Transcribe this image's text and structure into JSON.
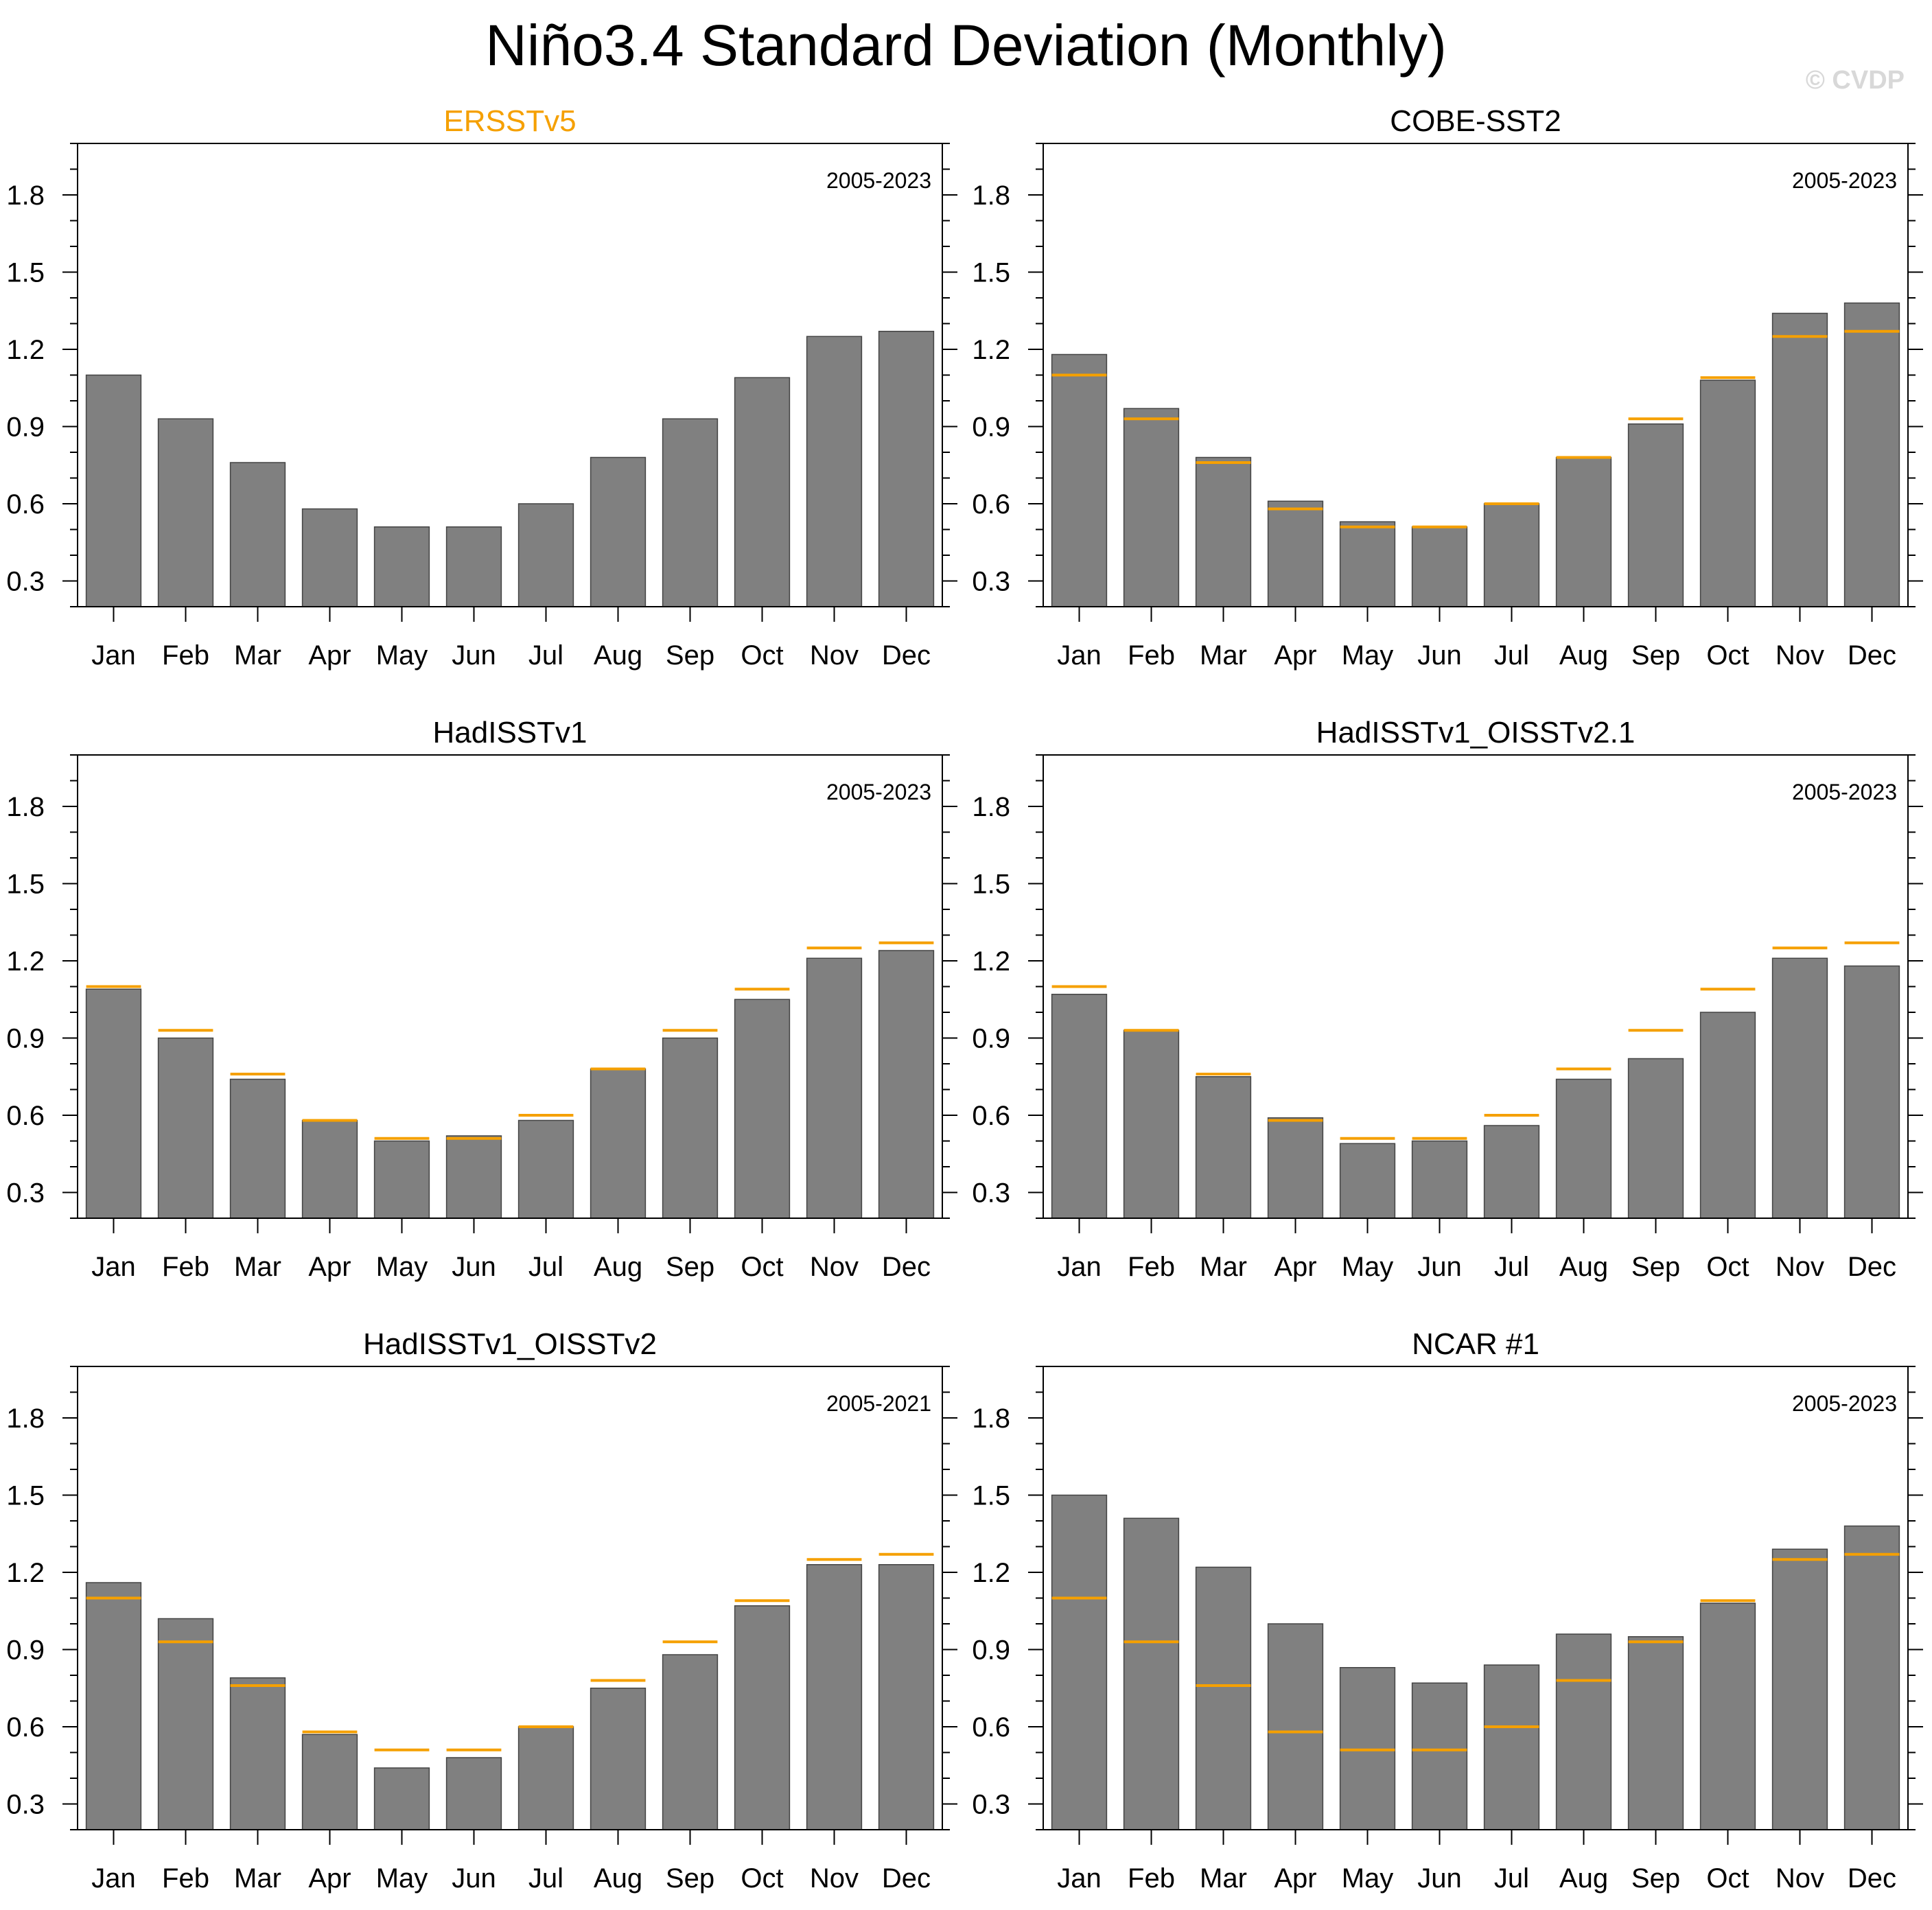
{
  "title": "Niño3.4 Standard Deviation (Monthly)",
  "watermark": "© CVDP",
  "colors": {
    "bar": "#808080",
    "reference": "#f5a000",
    "highlight_title": "#f5a000"
  },
  "chart_data": [
    {
      "type": "bar",
      "title": "ERSSTv5",
      "title_highlight": true,
      "period": "2005-2023",
      "categories": [
        "Jan",
        "Feb",
        "Mar",
        "Apr",
        "May",
        "Jun",
        "Jul",
        "Aug",
        "Sep",
        "Oct",
        "Nov",
        "Dec"
      ],
      "values": [
        1.1,
        0.93,
        0.76,
        0.58,
        0.51,
        0.51,
        0.6,
        0.78,
        0.93,
        1.09,
        1.25,
        1.27
      ],
      "reference": null,
      "ylim": [
        0.2,
        2.0
      ],
      "yticks": [
        "0.3",
        "0.6",
        "0.9",
        "1.2",
        "1.5",
        "1.8"
      ]
    },
    {
      "type": "bar",
      "title": "COBE-SST2",
      "title_highlight": false,
      "period": "2005-2023",
      "categories": [
        "Jan",
        "Feb",
        "Mar",
        "Apr",
        "May",
        "Jun",
        "Jul",
        "Aug",
        "Sep",
        "Oct",
        "Nov",
        "Dec"
      ],
      "values": [
        1.18,
        0.97,
        0.78,
        0.61,
        0.53,
        0.51,
        0.6,
        0.78,
        0.91,
        1.08,
        1.34,
        1.38
      ],
      "reference": [
        1.1,
        0.93,
        0.76,
        0.58,
        0.51,
        0.51,
        0.6,
        0.78,
        0.93,
        1.09,
        1.25,
        1.27
      ],
      "ylim": [
        0.2,
        2.0
      ],
      "yticks": [
        "0.3",
        "0.6",
        "0.9",
        "1.2",
        "1.5",
        "1.8"
      ]
    },
    {
      "type": "bar",
      "title": "HadISSTv1",
      "title_highlight": false,
      "period": "2005-2023",
      "categories": [
        "Jan",
        "Feb",
        "Mar",
        "Apr",
        "May",
        "Jun",
        "Jul",
        "Aug",
        "Sep",
        "Oct",
        "Nov",
        "Dec"
      ],
      "values": [
        1.09,
        0.9,
        0.74,
        0.58,
        0.5,
        0.52,
        0.58,
        0.78,
        0.9,
        1.05,
        1.21,
        1.24
      ],
      "reference": [
        1.1,
        0.93,
        0.76,
        0.58,
        0.51,
        0.51,
        0.6,
        0.78,
        0.93,
        1.09,
        1.25,
        1.27
      ],
      "ylim": [
        0.2,
        2.0
      ],
      "yticks": [
        "0.3",
        "0.6",
        "0.9",
        "1.2",
        "1.5",
        "1.8"
      ]
    },
    {
      "type": "bar",
      "title": "HadISSTv1_OISSTv2.1",
      "title_highlight": false,
      "period": "2005-2023",
      "categories": [
        "Jan",
        "Feb",
        "Mar",
        "Apr",
        "May",
        "Jun",
        "Jul",
        "Aug",
        "Sep",
        "Oct",
        "Nov",
        "Dec"
      ],
      "values": [
        1.07,
        0.93,
        0.75,
        0.59,
        0.49,
        0.5,
        0.56,
        0.74,
        0.82,
        1.0,
        1.21,
        1.18
      ],
      "reference": [
        1.1,
        0.93,
        0.76,
        0.58,
        0.51,
        0.51,
        0.6,
        0.78,
        0.93,
        1.09,
        1.25,
        1.27
      ],
      "ylim": [
        0.2,
        2.0
      ],
      "yticks": [
        "0.3",
        "0.6",
        "0.9",
        "1.2",
        "1.5",
        "1.8"
      ]
    },
    {
      "type": "bar",
      "title": "HadISSTv1_OISSTv2",
      "title_highlight": false,
      "period": "2005-2021",
      "categories": [
        "Jan",
        "Feb",
        "Mar",
        "Apr",
        "May",
        "Jun",
        "Jul",
        "Aug",
        "Sep",
        "Oct",
        "Nov",
        "Dec"
      ],
      "values": [
        1.16,
        1.02,
        0.79,
        0.57,
        0.44,
        0.48,
        0.6,
        0.75,
        0.88,
        1.07,
        1.23,
        1.23
      ],
      "reference": [
        1.1,
        0.93,
        0.76,
        0.58,
        0.51,
        0.51,
        0.6,
        0.78,
        0.93,
        1.09,
        1.25,
        1.27
      ],
      "ylim": [
        0.2,
        2.0
      ],
      "yticks": [
        "0.3",
        "0.6",
        "0.9",
        "1.2",
        "1.5",
        "1.8"
      ]
    },
    {
      "type": "bar",
      "title": "NCAR #1",
      "title_highlight": false,
      "period": "2005-2023",
      "categories": [
        "Jan",
        "Feb",
        "Mar",
        "Apr",
        "May",
        "Jun",
        "Jul",
        "Aug",
        "Sep",
        "Oct",
        "Nov",
        "Dec"
      ],
      "values": [
        1.5,
        1.41,
        1.22,
        1.0,
        0.83,
        0.77,
        0.84,
        0.96,
        0.95,
        1.08,
        1.29,
        1.38
      ],
      "reference": [
        1.1,
        0.93,
        0.76,
        0.58,
        0.51,
        0.51,
        0.6,
        0.78,
        0.93,
        1.09,
        1.25,
        1.27
      ],
      "ylim": [
        0.2,
        2.0
      ],
      "yticks": [
        "0.3",
        "0.6",
        "0.9",
        "1.2",
        "1.5",
        "1.8"
      ]
    }
  ]
}
